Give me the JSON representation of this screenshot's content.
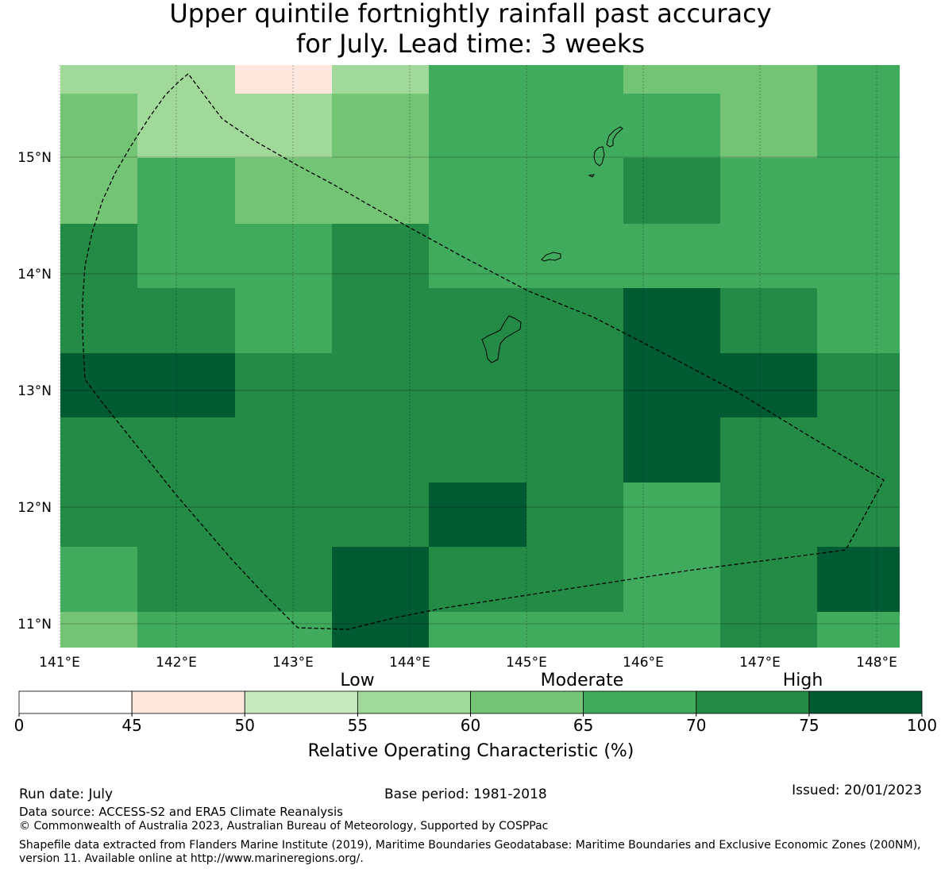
{
  "title": {
    "line1": "Upper quintile fortnightly rainfall past accuracy",
    "line2": "for July. Lead time: 3 weeks"
  },
  "map": {
    "lon_labels": [
      "141°E",
      "142°E",
      "143°E",
      "144°E",
      "145°E",
      "146°E",
      "147°E",
      "148°E"
    ],
    "lat_labels": [
      "15°N",
      "14°N",
      "13°N",
      "12°N",
      "11°N"
    ],
    "lon_ticks": [
      141,
      142,
      143,
      144,
      145,
      146,
      147,
      148
    ],
    "lat_ticks": [
      15,
      14,
      13,
      12,
      11
    ],
    "grid_roc_bins": [
      [
        55,
        55,
        45,
        55,
        65,
        65,
        60,
        60,
        65
      ],
      [
        60,
        55,
        55,
        60,
        65,
        65,
        65,
        60,
        65
      ],
      [
        60,
        65,
        60,
        60,
        65,
        65,
        70,
        65,
        65
      ],
      [
        70,
        65,
        65,
        70,
        65,
        65,
        65,
        65,
        65
      ],
      [
        70,
        70,
        65,
        70,
        70,
        70,
        75,
        70,
        65
      ],
      [
        75,
        75,
        70,
        70,
        70,
        70,
        75,
        75,
        70
      ],
      [
        70,
        70,
        70,
        70,
        70,
        70,
        75,
        70,
        70
      ],
      [
        70,
        70,
        70,
        70,
        75,
        70,
        65,
        70,
        70
      ],
      [
        65,
        70,
        70,
        75,
        70,
        70,
        65,
        70,
        75
      ],
      [
        60,
        65,
        65,
        75,
        65,
        65,
        65,
        70,
        65
      ]
    ]
  },
  "legend": {
    "categories": [
      "Low",
      "Moderate",
      "High"
    ],
    "tick_labels": [
      "0",
      "45",
      "50",
      "55",
      "60",
      "65",
      "70",
      "75",
      "100"
    ],
    "colors": [
      "#ffffff",
      "#fee8de",
      "#c7e9c0",
      "#a1d99b",
      "#74c476",
      "#41ab5d",
      "#238b45",
      "#005a32"
    ],
    "axis_label": "Relative Operating Characteristic (%)"
  },
  "footer": {
    "run_date": "Run date: July",
    "base_period": "Base period: 1981-2018",
    "issued": "Issued: 20/01/2023",
    "data_source": "Data source: ACCESS-S2 and ERA5 Climate Reanalysis",
    "copyright": "© Commonwealth of Australia 2023, Australian Bureau of Meteorology, Supported by COSPPac",
    "shapefile": "Shapefile data extracted from Flanders Marine Institute (2019), Maritime Boundaries Geodatabase: Maritime Boundaries and Exclusive Economic Zones (200NM), version 11. Available online at http://www.marineregions.org/."
  }
}
